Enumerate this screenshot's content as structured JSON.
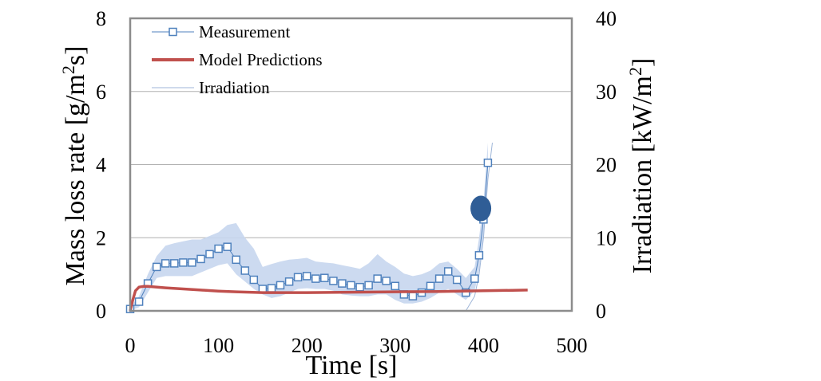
{
  "chart_data": {
    "type": "line",
    "title": "",
    "xlabel": "Time [s]",
    "ylabel_left": "Mass loss rate [g/m²s]",
    "ylabel_left_parts": [
      "Mass loss rate [g/m",
      "2",
      "s]"
    ],
    "ylabel_right": "Irradiation [kW/m²]",
    "ylabel_right_parts": [
      "Irradiation [kW/m",
      "2",
      "]"
    ],
    "xlim": [
      0,
      500
    ],
    "ylim_left": [
      0,
      8
    ],
    "ylim_right": [
      0,
      40
    ],
    "x_ticks": [
      "0",
      "100",
      "200",
      "300",
      "400",
      "500"
    ],
    "y_left_ticks": [
      "0",
      "2",
      "4",
      "6",
      "8"
    ],
    "y_right_ticks": [
      "0",
      "10",
      "20",
      "30",
      "40"
    ],
    "grid": "horizontal",
    "legend": {
      "placement": "top-left",
      "entries": [
        "Measurement",
        "Model Predictions",
        "Irradiation"
      ]
    },
    "colors": {
      "measurement": "#4f81bd",
      "band": "#c6d6ee",
      "model": "#c0504d",
      "irradiation": "#9fb6d8",
      "marker": "#2f5d96",
      "axis": "#8c8c8c",
      "grid": "#b0b0b0"
    },
    "series": [
      {
        "name": "Measurement",
        "axis": "left",
        "x": [
          0,
          10,
          20,
          30,
          40,
          50,
          60,
          70,
          80,
          90,
          100,
          110,
          120,
          130,
          140,
          150,
          160,
          170,
          180,
          190,
          200,
          210,
          220,
          230,
          240,
          250,
          260,
          270,
          280,
          290,
          300,
          310,
          320,
          330,
          340,
          350,
          360,
          370,
          380,
          390,
          395,
          400,
          405
        ],
        "y": [
          0.05,
          0.25,
          0.75,
          1.2,
          1.3,
          1.3,
          1.32,
          1.32,
          1.42,
          1.55,
          1.7,
          1.75,
          1.4,
          1.1,
          0.85,
          0.6,
          0.62,
          0.7,
          0.8,
          0.92,
          0.95,
          0.88,
          0.9,
          0.82,
          0.75,
          0.7,
          0.65,
          0.7,
          0.88,
          0.82,
          0.68,
          0.45,
          0.4,
          0.5,
          0.68,
          0.88,
          1.08,
          0.85,
          0.5,
          0.88,
          1.52,
          2.5,
          4.05
        ],
        "band_upper": [
          0.1,
          0.4,
          1.0,
          1.5,
          1.78,
          1.85,
          1.9,
          1.95,
          1.95,
          2.05,
          2.15,
          2.35,
          2.4,
          2.0,
          1.7,
          1.2,
          1.28,
          1.35,
          1.4,
          1.42,
          1.45,
          1.35,
          1.32,
          1.3,
          1.25,
          1.2,
          1.15,
          1.3,
          1.55,
          1.35,
          1.2,
          1.02,
          0.95,
          1.0,
          1.1,
          1.3,
          1.35,
          1.15,
          0.9,
          1.2,
          2.0,
          3.0,
          4.6
        ],
        "band_lower": [
          0.0,
          0.1,
          0.5,
          0.9,
          0.95,
          0.95,
          0.95,
          0.95,
          1.05,
          1.15,
          1.25,
          1.3,
          1.0,
          0.8,
          0.6,
          0.45,
          0.35,
          0.4,
          0.5,
          0.6,
          0.62,
          0.6,
          0.6,
          0.55,
          0.45,
          0.42,
          0.4,
          0.4,
          0.45,
          0.45,
          0.3,
          0.2,
          0.2,
          0.25,
          0.35,
          0.5,
          0.6,
          0.45,
          0.3,
          0.55,
          1.1,
          2.0,
          3.6
        ]
      },
      {
        "name": "Model Predictions",
        "axis": "left",
        "x": [
          0,
          3,
          6,
          10,
          15,
          20,
          40,
          60,
          80,
          100,
          120,
          150,
          200,
          250,
          300,
          350,
          400,
          450
        ],
        "y": [
          0.0,
          0.3,
          0.55,
          0.65,
          0.67,
          0.67,
          0.63,
          0.6,
          0.57,
          0.54,
          0.52,
          0.5,
          0.5,
          0.51,
          0.52,
          0.53,
          0.55,
          0.57
        ]
      },
      {
        "name": "Irradiation",
        "axis": "right",
        "x": [
          0,
          380,
          390,
          395,
          400,
          405,
          410
        ],
        "y": [
          0,
          0,
          2,
          5,
          10,
          18,
          23
        ]
      }
    ],
    "annotation": {
      "type": "filled-ellipse",
      "x": 397,
      "y": 2.8
    }
  }
}
